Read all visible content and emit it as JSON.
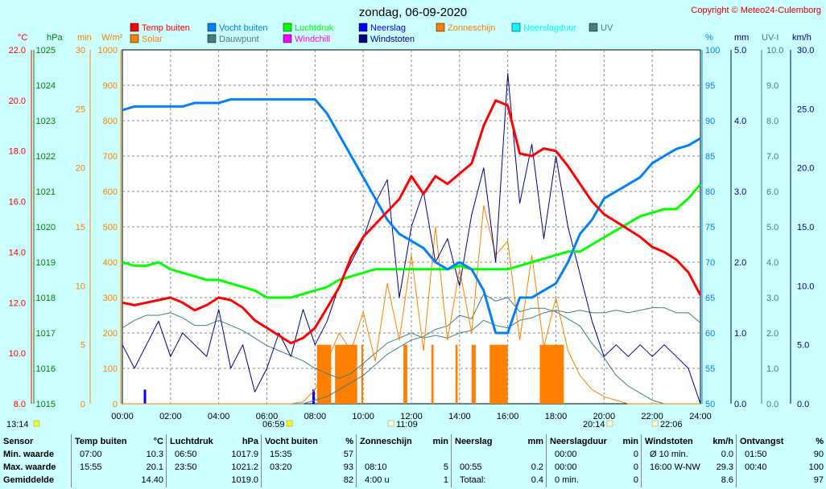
{
  "title": "zondag, 06-09-2020",
  "copyright": "Copyright © Meteo24-Culemborg",
  "legend": [
    {
      "label": "Temp buiten",
      "color": "#ff0000"
    },
    {
      "label": "Vocht buiten",
      "color": "#0080ff"
    },
    {
      "label": "Luchtdruk",
      "color": "#00ff00"
    },
    {
      "label": "Neerslag",
      "color": "#0000ff"
    },
    {
      "label": "Zonneschijn",
      "color": "#ff8000"
    },
    {
      "label": "Neerslagduur",
      "color": "#00ffff"
    },
    {
      "label": "UV",
      "color": "#408080"
    },
    {
      "label": "Solar",
      "color": "#ff8000"
    },
    {
      "label": "Dauwpunt",
      "color": "#408080"
    },
    {
      "label": "Windchill",
      "color": "#ff00ff"
    },
    {
      "label": "Windstoten",
      "color": "#000080"
    }
  ],
  "axes": {
    "temp": {
      "unit": "°C",
      "ticks": [
        "22.0",
        "20.0",
        "18.0",
        "16.0",
        "14.0",
        "12.0",
        "10.0",
        "8.0"
      ],
      "color": "#ff0000"
    },
    "pressure": {
      "unit": "hPa",
      "ticks": [
        "1025",
        "1024",
        "1023",
        "1022",
        "1021",
        "1020",
        "1019",
        "1018",
        "1017",
        "1016",
        "1015"
      ],
      "color": "#008000"
    },
    "minutes": {
      "unit": "min",
      "ticks": [
        "30",
        "25",
        "20",
        "15",
        "10",
        "5",
        "0"
      ],
      "color": "#ff8000"
    },
    "solar": {
      "unit": "W/m²",
      "ticks": [
        "1000",
        "900",
        "800",
        "700",
        "600",
        "500",
        "400",
        "300",
        "200",
        "100",
        "0"
      ],
      "color": "#ff8000"
    },
    "humidity": {
      "unit": "%",
      "ticks": [
        "100",
        "95",
        "90",
        "85",
        "80",
        "75",
        "70",
        "65",
        "60",
        "55",
        "50"
      ],
      "color": "#0080ff"
    },
    "rain": {
      "unit": "mm",
      "ticks": [
        "5.0",
        "4.0",
        "3.0",
        "2.0",
        "1.0",
        "0.0"
      ],
      "color": "#000080"
    },
    "uv": {
      "unit": "UV-I",
      "ticks": [
        "10.0",
        "9.0",
        "8.0",
        "7.0",
        "6.0",
        "5.0",
        "4.0",
        "3.0",
        "2.0",
        "1.0",
        "0.0"
      ],
      "color": "#408080"
    },
    "wind": {
      "unit": "km/h",
      "ticks": [
        "30.0",
        "25.0",
        "20.0",
        "15.0",
        "10.0",
        "5.0",
        "0.0"
      ],
      "color": "#000080"
    },
    "time": {
      "ticks": [
        "00:00",
        "02:00",
        "04:00",
        "06:00",
        "08:00",
        "10:00",
        "12:00",
        "14:00",
        "16:00",
        "18:00",
        "20:00",
        "22:00",
        "24:00"
      ]
    }
  },
  "markers": {
    "moonrise": "13:14",
    "sunrise": "06:59",
    "solar_noon": "11:09",
    "sunset": "20:14",
    "moonset": "22:06"
  },
  "chart_data": {
    "type": "line",
    "x_hours": [
      0,
      0.5,
      1,
      1.5,
      2,
      2.5,
      3,
      3.5,
      4,
      4.5,
      5,
      5.5,
      6,
      6.5,
      7,
      7.5,
      8,
      8.5,
      9,
      9.5,
      10,
      10.5,
      11,
      11.5,
      12,
      12.5,
      13,
      13.5,
      14,
      14.5,
      15,
      15.5,
      16,
      16.5,
      17,
      17.5,
      18,
      18.5,
      19,
      19.5,
      20,
      20.5,
      21,
      21.5,
      22,
      22.5,
      23,
      23.5,
      24
    ],
    "series": [
      {
        "name": "Temp buiten",
        "unit": "°C",
        "values": [
          12.0,
          11.9,
          12.0,
          12.1,
          12.2,
          12.0,
          11.7,
          11.9,
          12.2,
          12.1,
          11.8,
          11.3,
          11.0,
          10.7,
          10.4,
          10.6,
          11.0,
          11.8,
          12.6,
          13.8,
          14.6,
          15.1,
          15.6,
          16.1,
          17.0,
          16.3,
          17.0,
          16.7,
          17.1,
          17.5,
          19.0,
          20.0,
          19.8,
          17.9,
          17.8,
          18.1,
          18.0,
          17.4,
          16.7,
          16.0,
          15.5,
          15.2,
          14.9,
          14.6,
          14.2,
          14.0,
          13.7,
          13.2,
          12.3
        ]
      },
      {
        "name": "Vocht buiten",
        "unit": "%",
        "values": [
          91.5,
          92,
          92,
          92,
          92,
          92,
          92.5,
          92.5,
          92.5,
          93,
          93,
          93,
          93,
          93,
          93,
          93,
          93,
          91,
          88,
          85,
          82,
          79,
          76,
          74,
          73,
          72,
          70,
          69,
          70,
          69,
          66,
          60,
          60,
          65,
          65,
          66,
          67,
          70,
          74,
          76,
          79,
          80,
          81,
          82,
          84,
          85,
          86,
          86.5,
          87.5
        ]
      },
      {
        "name": "Luchtdruk",
        "unit": "hPa",
        "values": [
          1019.0,
          1018.9,
          1018.9,
          1019.0,
          1018.8,
          1018.7,
          1018.6,
          1018.5,
          1018.5,
          1018.4,
          1018.3,
          1018.2,
          1018.0,
          1018.0,
          1018.0,
          1018.1,
          1018.2,
          1018.3,
          1018.5,
          1018.6,
          1018.7,
          1018.8,
          1018.8,
          1018.8,
          1018.8,
          1018.8,
          1018.8,
          1018.8,
          1018.9,
          1018.8,
          1018.8,
          1018.8,
          1018.8,
          1018.9,
          1019.0,
          1019.1,
          1019.2,
          1019.3,
          1019.3,
          1019.5,
          1019.7,
          1019.9,
          1020.1,
          1020.3,
          1020.4,
          1020.5,
          1020.5,
          1020.8,
          1021.2
        ]
      },
      {
        "name": "Dauwpunt",
        "unit": "°C",
        "values": [
          11.0,
          11.3,
          11.5,
          11.5,
          11.6,
          11.4,
          11.1,
          11.1,
          11.3,
          11.1,
          10.9,
          10.6,
          10.3,
          10.1,
          9.9,
          9.7,
          9.4,
          9.2,
          9.0,
          9.2,
          9.6,
          10.0,
          10.4,
          10.6,
          10.8,
          10.6,
          10.7,
          10.6,
          10.8,
          10.9,
          11.3,
          11.1,
          11.0,
          11.3,
          11.4,
          11.6,
          11.7,
          11.6,
          11.7,
          11.6,
          11.6,
          11.7,
          11.6,
          11.7,
          11.8,
          11.8,
          11.6,
          11.6,
          11.2
        ]
      },
      {
        "name": "Windstoten",
        "unit": "km/h",
        "values": [
          5,
          3,
          5,
          7,
          4,
          6,
          5,
          4,
          8,
          3,
          5,
          1,
          3,
          6,
          4,
          8,
          5,
          7,
          10,
          12,
          14,
          17,
          19,
          9,
          15,
          18,
          12,
          14,
          10,
          16,
          20,
          12,
          28,
          17,
          22,
          14,
          21,
          15,
          11,
          7,
          4,
          5,
          4,
          5,
          4,
          5,
          4,
          3,
          0
        ]
      },
      {
        "name": "Solar",
        "unit": "W/m²",
        "values": [
          0,
          0,
          0,
          0,
          0,
          0,
          0,
          0,
          0,
          0,
          0,
          0,
          0,
          0,
          0,
          5,
          40,
          120,
          200,
          150,
          260,
          120,
          340,
          180,
          420,
          150,
          500,
          180,
          380,
          200,
          560,
          420,
          460,
          180,
          420,
          160,
          300,
          150,
          80,
          40,
          20,
          10,
          0,
          0,
          0,
          0,
          0,
          0,
          0
        ]
      },
      {
        "name": "UV",
        "unit": "UV-I",
        "values": [
          0,
          0,
          0,
          0,
          0,
          0,
          0,
          0,
          0,
          0,
          0,
          0,
          0,
          0,
          0,
          0,
          0.1,
          0.2,
          0.4,
          0.6,
          0.8,
          1.1,
          1.4,
          1.6,
          1.8,
          1.9,
          2.1,
          2.2,
          2.5,
          2.4,
          3.1,
          2.9,
          3.0,
          2.6,
          2.7,
          2.7,
          2.6,
          2.4,
          2.2,
          1.7,
          1.3,
          0.8,
          0.5,
          0.3,
          0.1,
          0,
          0,
          0,
          0
        ]
      }
    ],
    "zonneschijn_minutes": [
      {
        "from": 8.08,
        "to": 8.67,
        "value": 5
      },
      {
        "from": 8.83,
        "to": 9.75,
        "value": 5
      },
      {
        "from": 9.92,
        "to": 10.0,
        "value": 5
      },
      {
        "from": 11.67,
        "to": 11.83,
        "value": 5
      },
      {
        "from": 12.83,
        "to": 12.92,
        "value": 5
      },
      {
        "from": 15.25,
        "to": 16.0,
        "value": 5
      },
      {
        "from": 17.33,
        "to": 18.33,
        "value": 5
      },
      {
        "from": 14.5,
        "to": 14.67,
        "value": 5
      },
      {
        "from": 13.83,
        "to": 13.92,
        "value": 5
      }
    ],
    "neerslag_mm": [
      {
        "hour": 0.92,
        "value": 0.2
      },
      {
        "hour": 7.92,
        "value": 0.2
      }
    ],
    "title": "zondag, 06-09-2020",
    "xlabel": "",
    "xlim": [
      0,
      24
    ],
    "ylim_temp": [
      8,
      22
    ],
    "ylim_pressure": [
      1015,
      1025
    ],
    "ylim_humidity": [
      50,
      100
    ],
    "ylim_solar": [
      0,
      1000
    ],
    "ylim_wind": [
      0,
      30
    ],
    "ylim_uv": [
      0,
      10
    ],
    "ylim_rain": [
      0,
      5
    ],
    "ylim_minutes": [
      0,
      30
    ]
  },
  "stats": {
    "rows": [
      "Sensor",
      "Min. waarde",
      "Max. waarde",
      "Gemiddelde"
    ],
    "columns": [
      {
        "title": "Temp buiten",
        "unit": "°C",
        "cells": [
          [
            "07:00",
            "10.3"
          ],
          [
            "15:55",
            "20.1"
          ],
          [
            "",
            "14.40"
          ]
        ]
      },
      {
        "title": "Luchtdruk",
        "unit": "hPa",
        "cells": [
          [
            "06:50",
            "1017.9"
          ],
          [
            "23:50",
            "1021.2"
          ],
          [
            "",
            "1019.0"
          ]
        ]
      },
      {
        "title": "Vocht buiten",
        "unit": "%",
        "cells": [
          [
            "15:35",
            "57"
          ],
          [
            "03:20",
            "93"
          ],
          [
            "",
            "82"
          ]
        ]
      },
      {
        "title": "Zonneschijn",
        "unit": "min",
        "cells": [
          [
            "",
            ""
          ],
          [
            "08:10",
            "5"
          ],
          [
            "4:00 u",
            "1"
          ]
        ]
      },
      {
        "title": "Neerslag",
        "unit": "mm",
        "cells": [
          [
            "",
            ""
          ],
          [
            "00:55",
            "0.2"
          ],
          [
            "Totaal:",
            "0.4"
          ]
        ]
      },
      {
        "title": "Neerslagduur",
        "unit": "min",
        "cells": [
          [
            "00:00",
            "0"
          ],
          [
            "00:00",
            "0"
          ],
          [
            "0 min.",
            "0"
          ]
        ]
      },
      {
        "title": "Windstoten",
        "unit": "km/h",
        "cells": [
          [
            "Ø 10 min.",
            "0.0"
          ],
          [
            "16:00  W-NW",
            "29.3"
          ],
          [
            "",
            "8.6"
          ]
        ]
      },
      {
        "title": "Ontvangst",
        "unit": "%",
        "cells": [
          [
            "01:50",
            "90"
          ],
          [
            "00:40",
            "100"
          ],
          [
            "",
            "97"
          ]
        ]
      }
    ]
  }
}
